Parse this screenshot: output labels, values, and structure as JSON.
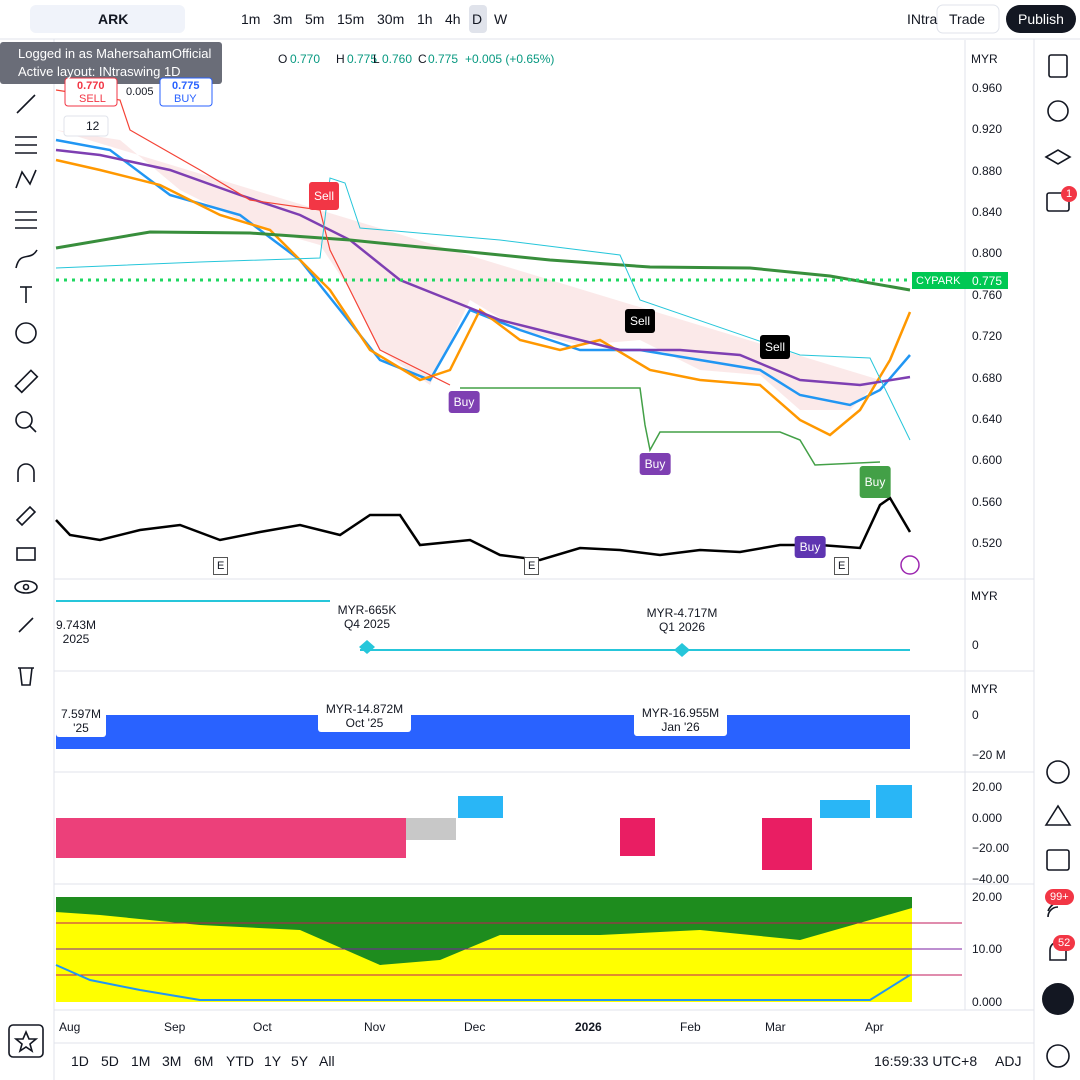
{
  "toolbar": {
    "symbol": "ARK",
    "timeframes": [
      "1m",
      "3m",
      "5m",
      "15m",
      "30m",
      "1h",
      "4h",
      "D",
      "W"
    ],
    "layout_name": "INtra",
    "trade": "Trade",
    "publish": "Publish"
  },
  "tooltip": {
    "line1": "Logged in as MahersahamOfficial",
    "line2": "Active layout: INtraswing 1D"
  },
  "legend": {
    "open_label": "O",
    "open": "0.770",
    "high_label": "H",
    "high": "0.775",
    "low_label": "L",
    "low": "0.760",
    "close_label": "C",
    "close": "0.775",
    "change": "+0.005 (+0.65%)"
  },
  "order_panel": {
    "sell_price": "0.770",
    "sell": "SELL",
    "spread": "0.005",
    "buy_price": "0.775",
    "buy": "BUY",
    "indicator_count": "12"
  },
  "price_axis": {
    "currency": "MYR",
    "ticks": [
      "0.960",
      "0.920",
      "0.880",
      "0.840",
      "0.800",
      "0.760",
      "0.720",
      "0.680",
      "0.640",
      "0.600",
      "0.560",
      "0.520"
    ],
    "symbol_tag": "CYPARK",
    "last_price": "0.775"
  },
  "signals": [
    "Sell",
    "Sell",
    "Sell",
    "Buy",
    "Buy",
    "Buy",
    "Buy"
  ],
  "earnings_markers": [
    "E",
    "E",
    "E"
  ],
  "pane2": {
    "currency": "MYR",
    "tick": "0",
    "labels": [
      {
        "value": "9.743M",
        "period": "2025"
      },
      {
        "value": "MYR-665K",
        "period": "Q4 2025"
      },
      {
        "value": "MYR-4.717M",
        "period": "Q1 2026"
      }
    ]
  },
  "pane3": {
    "currency": "MYR",
    "ticks": [
      "0",
      "−20 M"
    ],
    "labels": [
      {
        "value": "7.597M",
        "period": "'25"
      },
      {
        "value": "MYR-14.872M",
        "period": "Oct '25"
      },
      {
        "value": "MYR-16.955M",
        "period": "Jan '26"
      }
    ]
  },
  "pane4": {
    "ticks": [
      "20.00",
      "0.000",
      "−20.00",
      "−40.00"
    ]
  },
  "pane5": {
    "ticks": [
      "20.00",
      "10.00",
      "0.000"
    ]
  },
  "time_axis": [
    "Aug",
    "Sep",
    "Oct",
    "Nov",
    "Dec",
    "2026",
    "Feb",
    "Mar",
    "Apr"
  ],
  "bottom_bar": {
    "ranges": [
      "1D",
      "5D",
      "1M",
      "3M",
      "6M",
      "YTD",
      "1Y",
      "5Y",
      "All"
    ],
    "clock": "16:59:33 UTC+8",
    "adj": "ADJ"
  },
  "right_badges": {
    "chat": "1",
    "feed": "99+",
    "alerts": "52"
  }
}
